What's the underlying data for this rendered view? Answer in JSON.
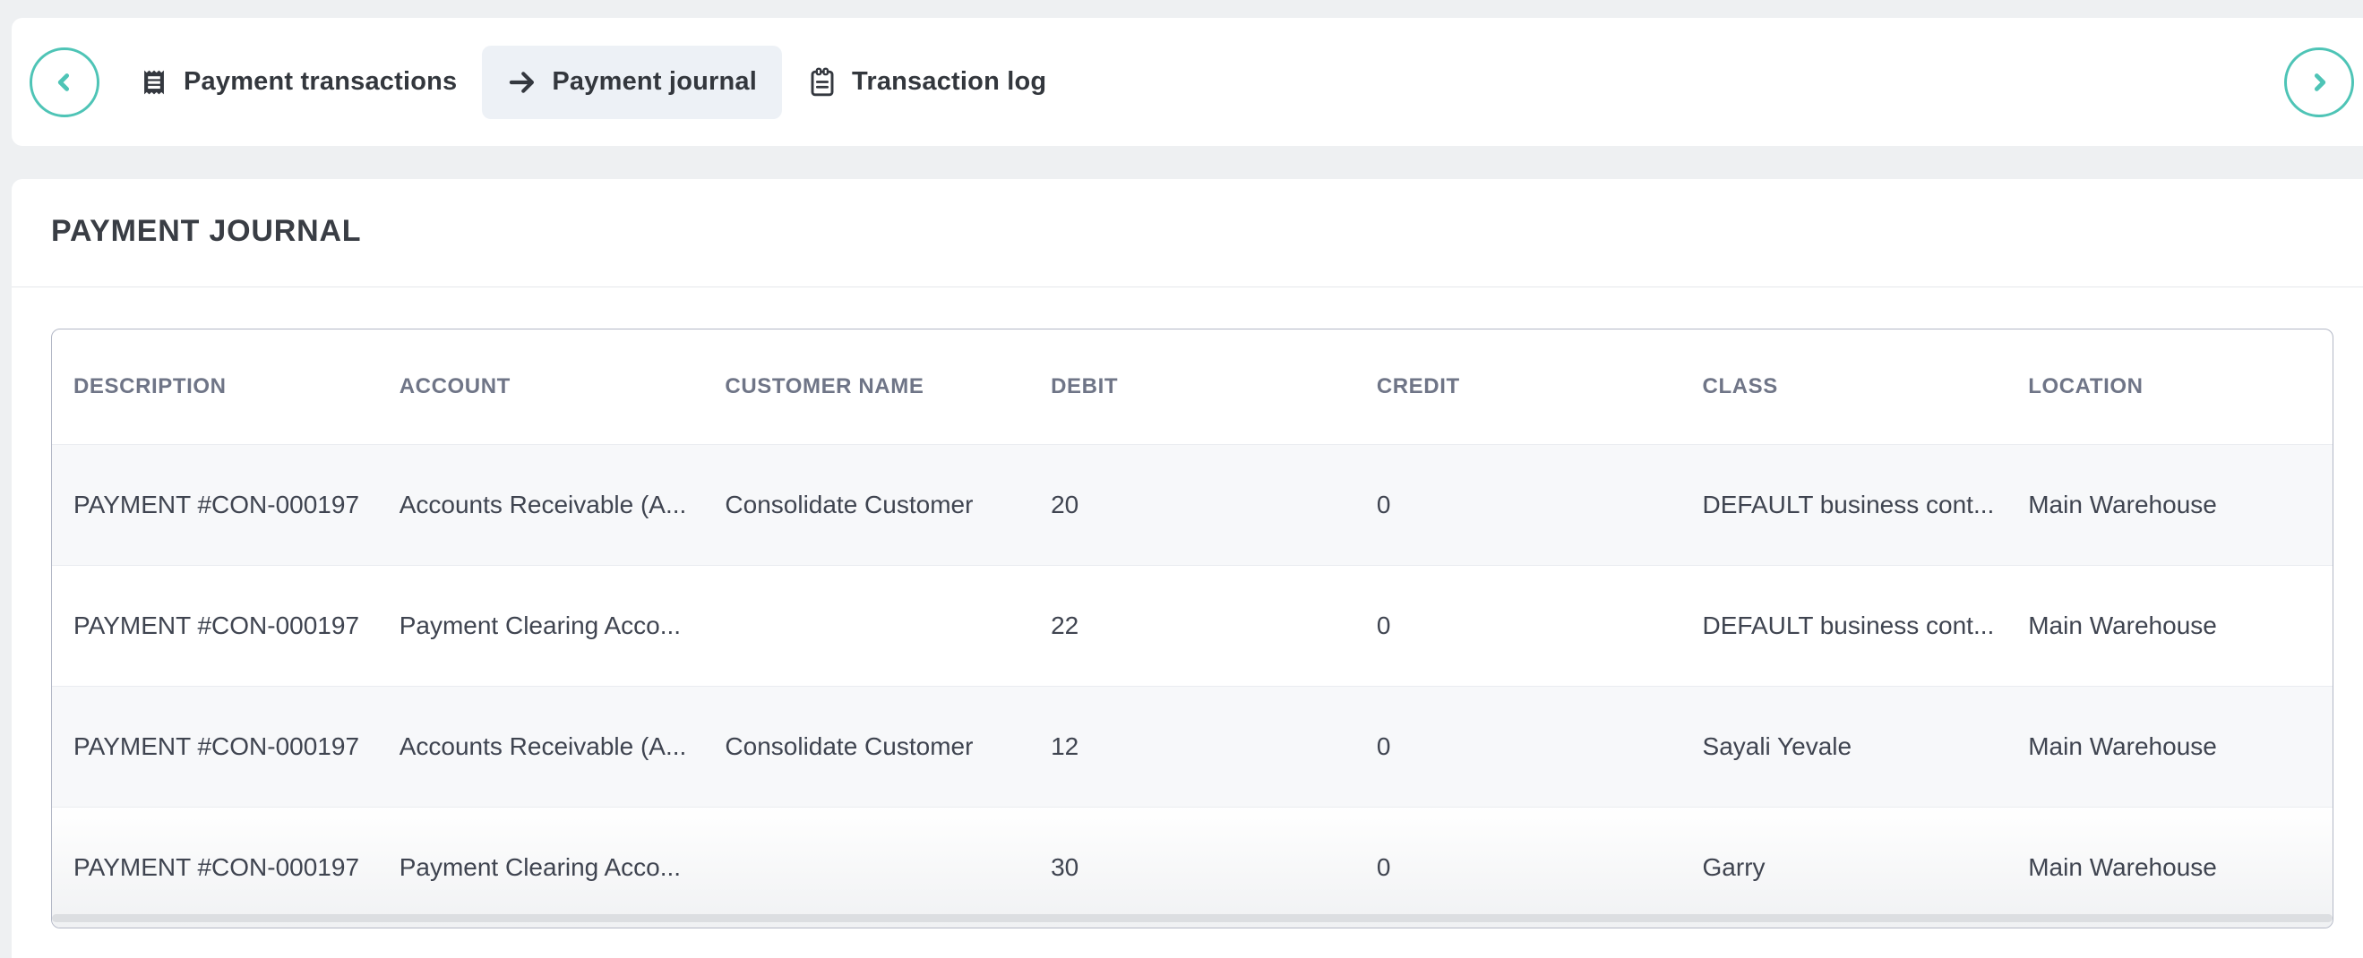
{
  "page": {
    "title": "PAYMENT JOURNAL"
  },
  "nav": {
    "prev_button": {
      "icon": "chevron-left-icon"
    },
    "next_button": {
      "icon": "chevron-right-icon"
    },
    "tabs": [
      {
        "label": "Payment transactions",
        "icon": "receipt-icon",
        "active": false
      },
      {
        "label": "Payment journal",
        "icon": "arrow-right-icon",
        "active": true
      },
      {
        "label": "Transaction log",
        "icon": "clipboard-icon",
        "active": false
      }
    ]
  },
  "table": {
    "columns": [
      "DESCRIPTION",
      "ACCOUNT",
      "CUSTOMER NAME",
      "DEBIT",
      "CREDIT",
      "CLASS",
      "LOCATION"
    ],
    "rows": [
      [
        "PAYMENT #CON-000197",
        "Accounts Receivable (A...",
        "Consolidate Customer",
        "20",
        "0",
        "DEFAULT business cont...",
        "Main Warehouse"
      ],
      [
        "PAYMENT #CON-000197",
        "Payment Clearing Acco...",
        "",
        "22",
        "0",
        "DEFAULT business cont...",
        "Main Warehouse"
      ],
      [
        "PAYMENT #CON-000197",
        "Accounts Receivable (A...",
        "Consolidate Customer",
        "12",
        "0",
        "Sayali Yevale",
        "Main Warehouse"
      ],
      [
        "PAYMENT #CON-000197",
        "Payment Clearing Acco...",
        "",
        "30",
        "0",
        "Garry",
        "Main Warehouse"
      ]
    ]
  },
  "colors": {
    "accent_teal": "#4ec4b6",
    "active_tab_bg": "#edf1f6",
    "page_bg": "#eef0f2",
    "card_border": "#b3b8c6",
    "header_text": "#6f7587",
    "body_text": "#3f4450",
    "stripe_row_bg": "#f7f8fa"
  }
}
